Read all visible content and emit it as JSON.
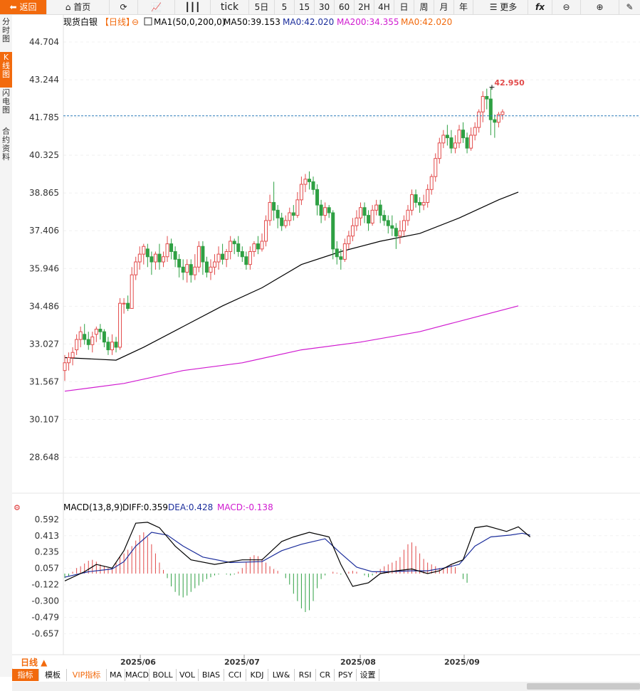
{
  "toolbar": {
    "back_label": "返回",
    "home_label": "首页",
    "tick_label": "tick",
    "periods": [
      "5日",
      "5",
      "15",
      "30",
      "60",
      "2H",
      "4H",
      "日",
      "周",
      "月",
      "年"
    ],
    "more_label": "更多",
    "fx_label": "fx"
  },
  "sidebar": {
    "items": [
      "分时图",
      "K线图",
      "闪电图",
      "合约资料"
    ]
  },
  "main_legend": {
    "name": "现货白银",
    "period": "【日线】",
    "ma_name": "MA1(50,0,200,0)",
    "ma50": "MA50:39.153",
    "ma0a": "MA0:42.020",
    "ma200": "MA200:34.355",
    "ma0b": "MA0:42.020"
  },
  "last_price": "42.950",
  "price_ticks": [
    "44.704",
    "43.244",
    "41.785",
    "40.325",
    "38.865",
    "37.406",
    "35.946",
    "34.486",
    "33.027",
    "31.567",
    "30.107",
    "28.648"
  ],
  "macd_legend": {
    "name": "MACD(13,8,9)",
    "diff": "DIFF:0.359",
    "dea": "DEA:0.428",
    "macd": "MACD:-0.138"
  },
  "macd_ticks": [
    "0.592",
    "0.413",
    "0.235",
    "0.057",
    "-0.122",
    "-0.300",
    "-0.479",
    "-0.657"
  ],
  "date_ticks": [
    "2025/06",
    "2025/07",
    "2025/08",
    "2025/09"
  ],
  "period_button": "日线 ▲",
  "bottom_tabs": [
    "指标",
    "模板",
    "VIP指标",
    "MA",
    "MACD",
    "BOLL",
    "VOL",
    "BIAS",
    "CCI",
    "KDJ",
    "LW&",
    "RSI",
    "CR",
    "PSY",
    "设置"
  ],
  "colors": {
    "up": "#e24a4a",
    "down": "#2ea043",
    "ma50": "#000000",
    "ma200": "#d01ad0",
    "diff": "#000000",
    "dea": "#1c2e9c",
    "macd_label": "#d01ad0",
    "accent": "#f26a0d",
    "last_line": "#2a7ab8"
  },
  "chart_data": {
    "type": "candlestick",
    "symbol": "现货白银",
    "x_ticks": [
      "2025/06",
      "2025/07",
      "2025/08",
      "2025/09"
    ],
    "ylim": [
      28.0,
      45.2
    ],
    "last_close_line": 41.85,
    "high_annotation": 42.95,
    "candles": [
      [
        32.0,
        32.3,
        32.6,
        31.6
      ],
      [
        32.3,
        32.5,
        32.7,
        32.0
      ],
      [
        32.5,
        32.7,
        32.9,
        32.2
      ],
      [
        32.8,
        33.2,
        33.4,
        32.6
      ],
      [
        33.2,
        33.5,
        33.7,
        32.9
      ],
      [
        33.4,
        33.2,
        33.8,
        33.0
      ],
      [
        33.2,
        33.0,
        33.5,
        32.8
      ],
      [
        33.0,
        33.3,
        33.5,
        32.7
      ],
      [
        33.4,
        33.6,
        33.7,
        33.1
      ],
      [
        33.6,
        33.5,
        33.8,
        33.2
      ],
      [
        33.5,
        33.1,
        33.6,
        32.9
      ],
      [
        33.1,
        32.8,
        33.3,
        32.6
      ],
      [
        32.8,
        33.1,
        33.4,
        32.6
      ],
      [
        33.1,
        32.9,
        33.3,
        32.7
      ],
      [
        32.9,
        34.6,
        34.8,
        32.8
      ],
      [
        34.6,
        34.6,
        34.8,
        34.2
      ],
      [
        34.6,
        34.4,
        34.9,
        34.3
      ],
      [
        34.4,
        35.7,
        36.0,
        34.4
      ],
      [
        35.7,
        36.2,
        36.4,
        35.5
      ],
      [
        36.2,
        36.5,
        36.8,
        35.9
      ],
      [
        36.5,
        36.8,
        36.9,
        36.1
      ],
      [
        36.7,
        36.4,
        36.9,
        36.0
      ],
      [
        36.4,
        36.2,
        36.6,
        35.7
      ],
      [
        36.2,
        36.5,
        36.6,
        35.9
      ],
      [
        36.5,
        36.2,
        36.9,
        35.9
      ],
      [
        36.2,
        36.4,
        36.6,
        36.0
      ],
      [
        36.4,
        36.9,
        37.2,
        36.2
      ],
      [
        36.9,
        36.6,
        37.1,
        36.3
      ],
      [
        36.6,
        36.3,
        36.8,
        36.0
      ],
      [
        36.3,
        36.0,
        36.5,
        35.6
      ],
      [
        36.0,
        35.8,
        36.3,
        35.5
      ],
      [
        35.8,
        36.1,
        36.3,
        35.4
      ],
      [
        36.1,
        35.7,
        36.3,
        35.4
      ],
      [
        35.7,
        36.0,
        36.5,
        35.5
      ],
      [
        36.0,
        36.8,
        37.0,
        35.8
      ],
      [
        36.8,
        36.2,
        37.0,
        35.7
      ],
      [
        36.2,
        35.8,
        36.4,
        35.6
      ],
      [
        35.8,
        36.0,
        36.3,
        35.5
      ],
      [
        36.0,
        36.2,
        36.5,
        35.7
      ],
      [
        36.2,
        36.5,
        36.8,
        35.9
      ],
      [
        36.5,
        36.3,
        36.9,
        36.1
      ],
      [
        36.3,
        36.6,
        36.7,
        36.0
      ],
      [
        36.6,
        37.0,
        37.2,
        36.3
      ],
      [
        37.0,
        36.9,
        37.1,
        36.5
      ],
      [
        36.9,
        36.6,
        37.2,
        36.4
      ],
      [
        36.6,
        36.4,
        36.8,
        36.2
      ],
      [
        36.4,
        36.1,
        36.6,
        35.9
      ],
      [
        36.1,
        36.6,
        36.8,
        35.9
      ],
      [
        36.6,
        36.9,
        37.0,
        36.4
      ],
      [
        36.9,
        36.7,
        37.2,
        36.5
      ],
      [
        36.7,
        37.0,
        37.3,
        36.6
      ],
      [
        37.0,
        37.8,
        38.0,
        36.8
      ],
      [
        37.8,
        38.5,
        38.8,
        37.6
      ],
      [
        38.5,
        38.2,
        39.3,
        37.8
      ],
      [
        38.2,
        37.9,
        38.4,
        37.5
      ],
      [
        37.9,
        37.6,
        38.1,
        37.4
      ],
      [
        37.6,
        37.8,
        38.0,
        37.5
      ],
      [
        37.8,
        38.1,
        38.3,
        37.6
      ],
      [
        38.1,
        38.0,
        38.4,
        37.8
      ],
      [
        38.0,
        38.6,
        38.9,
        37.9
      ],
      [
        38.6,
        39.2,
        39.5,
        38.4
      ],
      [
        39.2,
        39.4,
        39.6,
        38.9
      ],
      [
        39.4,
        39.3,
        39.7,
        39.0
      ],
      [
        39.3,
        39.0,
        39.5,
        38.8
      ],
      [
        39.0,
        38.4,
        39.2,
        38.0
      ],
      [
        38.4,
        38.0,
        38.6,
        37.7
      ],
      [
        38.0,
        38.3,
        38.5,
        37.8
      ],
      [
        38.3,
        38.1,
        38.4,
        37.9
      ],
      [
        38.1,
        36.7,
        38.2,
        36.3
      ],
      [
        36.7,
        36.4,
        37.0,
        36.1
      ],
      [
        36.4,
        36.3,
        36.7,
        35.9
      ],
      [
        36.3,
        36.9,
        37.1,
        36.2
      ],
      [
        36.9,
        37.2,
        37.4,
        36.7
      ],
      [
        37.2,
        37.6,
        37.9,
        37.0
      ],
      [
        37.6,
        37.9,
        38.2,
        37.4
      ],
      [
        37.9,
        38.3,
        38.5,
        37.6
      ],
      [
        38.3,
        38.0,
        38.5,
        37.7
      ],
      [
        38.0,
        37.7,
        38.2,
        37.4
      ],
      [
        37.7,
        38.2,
        38.4,
        37.6
      ],
      [
        38.2,
        38.4,
        38.6,
        38.0
      ],
      [
        38.4,
        38.0,
        38.6,
        37.7
      ],
      [
        38.0,
        37.8,
        38.2,
        37.6
      ],
      [
        37.8,
        37.6,
        38.0,
        37.3
      ],
      [
        37.6,
        37.5,
        38.0,
        37.2
      ],
      [
        37.5,
        37.2,
        37.7,
        36.7
      ],
      [
        37.2,
        37.4,
        37.8,
        36.9
      ],
      [
        37.4,
        37.8,
        38.0,
        37.2
      ],
      [
        37.8,
        38.2,
        38.4,
        37.6
      ],
      [
        38.2,
        38.8,
        39.0,
        38.0
      ],
      [
        38.8,
        38.5,
        39.0,
        38.3
      ],
      [
        38.5,
        38.4,
        38.7,
        38.1
      ],
      [
        38.4,
        38.5,
        38.8,
        38.2
      ],
      [
        38.5,
        39.0,
        39.2,
        38.3
      ],
      [
        39.0,
        39.5,
        39.6,
        38.8
      ],
      [
        39.5,
        40.2,
        40.4,
        39.3
      ],
      [
        40.2,
        40.8,
        41.0,
        40.0
      ],
      [
        40.8,
        41.1,
        41.3,
        40.6
      ],
      [
        41.1,
        41.0,
        41.5,
        40.7
      ],
      [
        41.0,
        40.6,
        41.3,
        40.4
      ],
      [
        40.6,
        40.8,
        41.1,
        40.4
      ],
      [
        40.8,
        41.3,
        41.5,
        40.6
      ],
      [
        41.3,
        41.0,
        41.6,
        40.8
      ],
      [
        41.0,
        40.6,
        41.2,
        40.4
      ],
      [
        40.6,
        41.1,
        41.4,
        40.5
      ],
      [
        41.1,
        41.4,
        41.6,
        40.9
      ],
      [
        41.4,
        42.0,
        42.1,
        41.2
      ],
      [
        42.0,
        42.6,
        42.8,
        41.6
      ],
      [
        42.6,
        42.5,
        42.9,
        42.1
      ],
      [
        42.5,
        41.7,
        42.95,
        41.1
      ],
      [
        41.7,
        41.6,
        41.9,
        41.0
      ],
      [
        41.6,
        41.9,
        42.0,
        41.4
      ],
      [
        41.9,
        42.0,
        42.1,
        41.7
      ]
    ],
    "ma50": {
      "name": "MA50",
      "points": [
        [
          0,
          32.5
        ],
        [
          13,
          32.4
        ],
        [
          20,
          32.9
        ],
        [
          30,
          33.7
        ],
        [
          40,
          34.5
        ],
        [
          50,
          35.2
        ],
        [
          60,
          36.1
        ],
        [
          70,
          36.6
        ],
        [
          80,
          37.0
        ],
        [
          90,
          37.3
        ],
        [
          100,
          37.9
        ],
        [
          110,
          38.6
        ],
        [
          115,
          38.9
        ]
      ]
    },
    "ma200": {
      "name": "MA200",
      "points": [
        [
          0,
          31.2
        ],
        [
          15,
          31.5
        ],
        [
          30,
          32.0
        ],
        [
          45,
          32.3
        ],
        [
          60,
          32.8
        ],
        [
          75,
          33.1
        ],
        [
          90,
          33.5
        ],
        [
          105,
          34.1
        ],
        [
          115,
          34.5
        ]
      ]
    },
    "macd": {
      "ylim": [
        -0.8,
        0.66
      ],
      "diff": [
        [
          0,
          -0.08
        ],
        [
          5,
          0.02
        ],
        [
          8,
          0.1
        ],
        [
          12,
          0.06
        ],
        [
          15,
          0.25
        ],
        [
          18,
          0.55
        ],
        [
          21,
          0.56
        ],
        [
          24,
          0.5
        ],
        [
          28,
          0.3
        ],
        [
          32,
          0.15
        ],
        [
          38,
          0.1
        ],
        [
          45,
          0.15
        ],
        [
          50,
          0.15
        ],
        [
          55,
          0.35
        ],
        [
          58,
          0.4
        ],
        [
          62,
          0.45
        ],
        [
          67,
          0.4
        ],
        [
          70,
          0.1
        ],
        [
          73,
          -0.14
        ],
        [
          77,
          -0.1
        ],
        [
          80,
          0.0
        ],
        [
          84,
          0.03
        ],
        [
          88,
          0.05
        ],
        [
          92,
          0.0
        ],
        [
          95,
          0.03
        ],
        [
          98,
          0.1
        ],
        [
          101,
          0.15
        ],
        [
          104,
          0.5
        ],
        [
          107,
          0.52
        ],
        [
          112,
          0.46
        ],
        [
          115,
          0.51
        ],
        [
          118,
          0.4
        ]
      ],
      "dea": [
        [
          0,
          -0.04
        ],
        [
          6,
          0.02
        ],
        [
          12,
          0.05
        ],
        [
          15,
          0.13
        ],
        [
          18,
          0.3
        ],
        [
          22,
          0.45
        ],
        [
          26,
          0.42
        ],
        [
          30,
          0.3
        ],
        [
          35,
          0.18
        ],
        [
          42,
          0.12
        ],
        [
          50,
          0.13
        ],
        [
          55,
          0.25
        ],
        [
          60,
          0.32
        ],
        [
          66,
          0.38
        ],
        [
          70,
          0.22
        ],
        [
          74,
          0.07
        ],
        [
          78,
          0.02
        ],
        [
          82,
          0.02
        ],
        [
          88,
          0.03
        ],
        [
          92,
          0.03
        ],
        [
          96,
          0.06
        ],
        [
          100,
          0.1
        ],
        [
          104,
          0.3
        ],
        [
          108,
          0.4
        ],
        [
          113,
          0.42
        ],
        [
          116,
          0.44
        ],
        [
          118,
          0.42
        ]
      ],
      "hist": [
        -0.05,
        -0.03,
        0.02,
        0.06,
        0.08,
        0.11,
        0.14,
        0.15,
        0.13,
        0.1,
        0.08,
        0.06,
        0.05,
        0.12,
        0.18,
        0.22,
        0.26,
        0.3,
        0.36,
        0.42,
        0.45,
        0.4,
        0.32,
        0.22,
        0.12,
        0.04,
        -0.05,
        -0.14,
        -0.2,
        -0.24,
        -0.26,
        -0.24,
        -0.2,
        -0.16,
        -0.13,
        -0.09,
        -0.06,
        -0.04,
        -0.02,
        -0.01,
        0.0,
        -0.01,
        -0.02,
        -0.01,
        0.02,
        0.06,
        0.12,
        0.18,
        0.2,
        0.19,
        0.16,
        0.12,
        0.08,
        0.05,
        0.03,
        0.0,
        -0.05,
        -0.12,
        -0.22,
        -0.3,
        -0.38,
        -0.42,
        -0.4,
        -0.3,
        -0.16,
        -0.06,
        -0.02,
        0.0,
        0.02,
        0.01,
        -0.01,
        0.0,
        0.02,
        0.03,
        0.02,
        0.0,
        -0.02,
        -0.04,
        -0.02,
        0.02,
        0.05,
        0.08,
        0.1,
        0.12,
        0.14,
        0.18,
        0.26,
        0.32,
        0.34,
        0.3,
        0.22,
        0.16,
        0.12,
        0.1,
        0.08,
        0.06,
        0.06,
        0.08,
        0.1,
        0.07,
        0.0,
        -0.06,
        -0.1
      ]
    }
  }
}
